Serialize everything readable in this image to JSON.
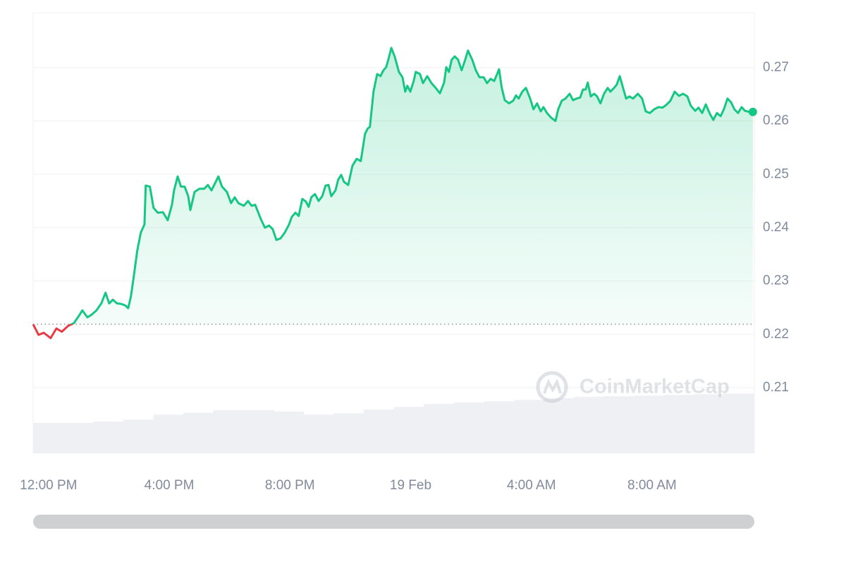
{
  "chart_data": {
    "type": "line",
    "x": [
      -0.51,
      -0.33,
      -0.16,
      0.07,
      0.26,
      0.44,
      0.65,
      0.84,
      1.0,
      1.12,
      1.29,
      1.43,
      1.59,
      1.75,
      1.89,
      2.01,
      2.13,
      2.27,
      2.41,
      2.55,
      2.64,
      2.73,
      2.83,
      2.94,
      3.06,
      3.18,
      3.22,
      3.36,
      3.48,
      3.62,
      3.79,
      3.95,
      4.09,
      4.16,
      4.28,
      4.39,
      4.51,
      4.63,
      4.7,
      4.84,
      5.0,
      5.16,
      5.28,
      5.4,
      5.54,
      5.63,
      5.75,
      5.91,
      6.05,
      6.17,
      6.29,
      6.47,
      6.61,
      6.73,
      6.85,
      7.03,
      7.17,
      7.31,
      7.43,
      7.55,
      7.69,
      7.83,
      7.97,
      8.06,
      8.18,
      8.29,
      8.41,
      8.53,
      8.62,
      8.71,
      8.83,
      8.95,
      9.07,
      9.18,
      9.28,
      9.37,
      9.51,
      9.6,
      9.7,
      9.79,
      9.93,
      10.07,
      10.21,
      10.35,
      10.49,
      10.58,
      10.65,
      10.77,
      10.89,
      11.0,
      11.1,
      11.19,
      11.26,
      11.36,
      11.47,
      11.61,
      11.73,
      11.82,
      11.89,
      11.99,
      12.1,
      12.17,
      12.31,
      12.41,
      12.55,
      12.69,
      12.83,
      12.97,
      13.11,
      13.18,
      13.27,
      13.36,
      13.46,
      13.57,
      13.69,
      13.81,
      13.9,
      14.04,
      14.16,
      14.28,
      14.42,
      14.53,
      14.65,
      14.77,
      14.93,
      15.02,
      15.12,
      15.26,
      15.4,
      15.49,
      15.58,
      15.7,
      15.82,
      15.96,
      16.07,
      16.19,
      16.31,
      16.4,
      16.52,
      16.66,
      16.8,
      16.89,
      17.01,
      17.13,
      17.27,
      17.38,
      17.5,
      17.62,
      17.71,
      17.8,
      17.87,
      17.97,
      18.08,
      18.18,
      18.29,
      18.41,
      18.53,
      18.62,
      18.74,
      18.83,
      18.93,
      19.02,
      19.14,
      19.25,
      19.37,
      19.53,
      19.67,
      19.79,
      19.93,
      20.07,
      20.21,
      20.35,
      20.49,
      20.61,
      20.75,
      20.89,
      21.03,
      21.17,
      21.28,
      21.43,
      21.54,
      21.66,
      21.78,
      21.92,
      22.03,
      22.15,
      22.27,
      22.38,
      22.5,
      22.62,
      22.73,
      22.85,
      22.97,
      23.08,
      23.22,
      23.34
    ],
    "series": [
      {
        "color": "#16c784",
        "values": [
          0.2219,
          0.2199,
          0.2203,
          0.2193,
          0.2211,
          0.2205,
          0.2216,
          0.2221,
          0.2234,
          0.2245,
          0.2232,
          0.2237,
          0.2245,
          0.2258,
          0.2278,
          0.2258,
          0.2265,
          0.2258,
          0.2257,
          0.2254,
          0.2249,
          0.2271,
          0.2311,
          0.2357,
          0.2391,
          0.2406,
          0.2479,
          0.2477,
          0.2437,
          0.2428,
          0.2429,
          0.2414,
          0.2443,
          0.247,
          0.2496,
          0.2477,
          0.2477,
          0.2459,
          0.2433,
          0.2467,
          0.2473,
          0.2473,
          0.248,
          0.247,
          0.2486,
          0.2496,
          0.2477,
          0.2467,
          0.2446,
          0.2457,
          0.2446,
          0.2441,
          0.245,
          0.2441,
          0.2443,
          0.2417,
          0.24,
          0.2404,
          0.2397,
          0.2377,
          0.238,
          0.2391,
          0.2406,
          0.242,
          0.2428,
          0.2422,
          0.2454,
          0.2449,
          0.2439,
          0.2457,
          0.2463,
          0.245,
          0.2459,
          0.2479,
          0.248,
          0.2459,
          0.247,
          0.249,
          0.2499,
          0.2486,
          0.248,
          0.2516,
          0.2529,
          0.2525,
          0.2576,
          0.2586,
          0.2589,
          0.2655,
          0.2688,
          0.2684,
          0.2695,
          0.2701,
          0.2715,
          0.2737,
          0.2721,
          0.2692,
          0.2682,
          0.2655,
          0.2666,
          0.2655,
          0.2675,
          0.2692,
          0.2688,
          0.2671,
          0.2684,
          0.2671,
          0.2662,
          0.2652,
          0.2672,
          0.2701,
          0.2692,
          0.2715,
          0.2721,
          0.2715,
          0.2695,
          0.2715,
          0.2732,
          0.2715,
          0.2695,
          0.2682,
          0.2682,
          0.2671,
          0.2679,
          0.2675,
          0.2697,
          0.2662,
          0.2639,
          0.2633,
          0.2638,
          0.2648,
          0.2642,
          0.2655,
          0.2662,
          0.2642,
          0.2622,
          0.2633,
          0.2618,
          0.2626,
          0.2615,
          0.2606,
          0.26,
          0.2622,
          0.2638,
          0.2642,
          0.2651,
          0.2639,
          0.2642,
          0.2644,
          0.2659,
          0.2659,
          0.2672,
          0.2646,
          0.2651,
          0.2646,
          0.2633,
          0.2651,
          0.2662,
          0.2655,
          0.2662,
          0.2668,
          0.2684,
          0.2666,
          0.2642,
          0.2646,
          0.2642,
          0.2651,
          0.2642,
          0.2618,
          0.2615,
          0.2622,
          0.2626,
          0.2625,
          0.2631,
          0.2638,
          0.2655,
          0.2647,
          0.2651,
          0.2646,
          0.2629,
          0.2619,
          0.2625,
          0.2615,
          0.2631,
          0.2613,
          0.2602,
          0.2615,
          0.2609,
          0.2622,
          0.2642,
          0.2635,
          0.2622,
          0.2615,
          0.2626,
          0.2619,
          0.2617,
          0.2617
        ]
      }
    ],
    "down_color": "#ea3943",
    "volume": {
      "color": "#eef0f4",
      "lim": [
        0,
        100
      ],
      "values": [
        48,
        48,
        50,
        53,
        61,
        64,
        68,
        68,
        66,
        61,
        63,
        69,
        73,
        78,
        80,
        82,
        84,
        87,
        89,
        90,
        91,
        92,
        93,
        94
      ]
    },
    "xlim": [
      -0.51,
      23.39
    ],
    "xticks": [
      {
        "value": 0,
        "label": "12:00 PM"
      },
      {
        "value": 4,
        "label": "4:00 PM"
      },
      {
        "value": 8,
        "label": "8:00 PM"
      },
      {
        "value": 12,
        "label": "19 Feb"
      },
      {
        "value": 16,
        "label": "4:00 AM"
      },
      {
        "value": 20,
        "label": "8:00 AM"
      }
    ],
    "ylim": [
      0.1977,
      0.2803
    ],
    "yticks": [
      0.21,
      0.22,
      0.23,
      0.24,
      0.25,
      0.26,
      0.27
    ],
    "grid": true,
    "watermark": "CoinMarketCap"
  }
}
